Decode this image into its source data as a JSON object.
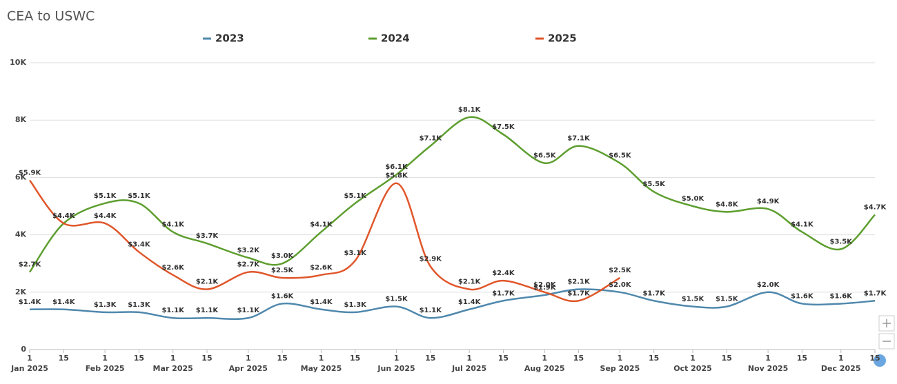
{
  "chart_data": {
    "type": "line",
    "title": "CEA to USWC",
    "x": [
      "2025-01-01",
      "2025-01-15",
      "2025-02-01",
      "2025-02-15",
      "2025-03-01",
      "2025-03-15",
      "2025-04-01",
      "2025-04-15",
      "2025-05-01",
      "2025-05-15",
      "2025-06-01",
      "2025-06-15",
      "2025-07-01",
      "2025-07-15",
      "2025-08-01",
      "2025-08-15",
      "2025-09-01",
      "2025-09-15",
      "2025-10-01",
      "2025-10-15",
      "2025-11-01",
      "2025-11-15",
      "2025-12-01",
      "2025-12-15"
    ],
    "xlim": [
      "2025-01-01",
      "2025-12-15"
    ],
    "xticks": [
      {
        "value": "2025-01-01",
        "label": "1"
      },
      {
        "value": "2025-01-15",
        "label": "15"
      },
      {
        "value": "2025-02-01",
        "label": "1"
      },
      {
        "value": "2025-02-15",
        "label": "15"
      },
      {
        "value": "2025-03-01",
        "label": "1"
      },
      {
        "value": "2025-03-15",
        "label": "15"
      },
      {
        "value": "2025-04-01",
        "label": "1"
      },
      {
        "value": "2025-04-15",
        "label": "15"
      },
      {
        "value": "2025-05-01",
        "label": "1"
      },
      {
        "value": "2025-05-15",
        "label": "15"
      },
      {
        "value": "2025-06-01",
        "label": "1"
      },
      {
        "value": "2025-06-15",
        "label": "15"
      },
      {
        "value": "2025-07-01",
        "label": "1"
      },
      {
        "value": "2025-07-15",
        "label": "15"
      },
      {
        "value": "2025-08-01",
        "label": "1"
      },
      {
        "value": "2025-08-15",
        "label": "15"
      },
      {
        "value": "2025-09-01",
        "label": "1"
      },
      {
        "value": "2025-09-15",
        "label": "15"
      },
      {
        "value": "2025-10-01",
        "label": "1"
      },
      {
        "value": "2025-10-15",
        "label": "15"
      },
      {
        "value": "2025-11-01",
        "label": "1"
      },
      {
        "value": "2025-11-15",
        "label": "15"
      },
      {
        "value": "2025-12-01",
        "label": "1"
      },
      {
        "value": "2025-12-15",
        "label": "15"
      }
    ],
    "xmonths": [
      {
        "value": "2025-01-01",
        "label": "Jan 2025"
      },
      {
        "value": "2025-02-01",
        "label": "Feb 2025"
      },
      {
        "value": "2025-03-01",
        "label": "Mar 2025"
      },
      {
        "value": "2025-04-01",
        "label": "Apr 2025"
      },
      {
        "value": "2025-05-01",
        "label": "May 2025"
      },
      {
        "value": "2025-06-01",
        "label": "Jun 2025"
      },
      {
        "value": "2025-07-01",
        "label": "Jul 2025"
      },
      {
        "value": "2025-08-01",
        "label": "Aug 2025"
      },
      {
        "value": "2025-09-01",
        "label": "Sep 2025"
      },
      {
        "value": "2025-10-01",
        "label": "Oct 2025"
      },
      {
        "value": "2025-11-01",
        "label": "Nov 2025"
      },
      {
        "value": "2025-12-01",
        "label": "Dec 2025"
      }
    ],
    "ylim": [
      0,
      10000
    ],
    "yticks": [
      0,
      {
        "value": 2000,
        "label": "2K"
      },
      {
        "value": 4000,
        "label": "4K"
      },
      {
        "value": 6000,
        "label": "6K"
      },
      {
        "value": 8000,
        "label": "8K"
      },
      {
        "value": 10000,
        "label": "10K"
      }
    ],
    "grid": true,
    "legend": "top",
    "series": [
      {
        "name": "2023",
        "color": "#4f88ad",
        "values": [
          1400,
          1400,
          1300,
          1300,
          1100,
          1100,
          1100,
          1600,
          1400,
          1300,
          1500,
          1100,
          1400,
          1700,
          1900,
          2100,
          2000,
          1700,
          1500,
          1500,
          2000,
          1600,
          1600,
          1700
        ],
        "value_labels": [
          "$1.4K",
          "$1.4K",
          "$1.3K",
          "$1.3K",
          "$1.1K",
          "$1.1K",
          "$1.1K",
          "$1.6K",
          "$1.4K",
          "$1.3K",
          "$1.5K",
          "$1.1K",
          "$1.4K",
          "$1.7K",
          "$1.9K",
          "$2.1K",
          "$2.0K",
          "$1.7K",
          "$1.5K",
          "$1.5K",
          "$2.0K",
          "$1.6K",
          "$1.6K",
          "$1.7K"
        ]
      },
      {
        "name": "2024",
        "color": "#5d9e2e",
        "values": [
          2700,
          4400,
          5100,
          5100,
          4100,
          3700,
          3200,
          3000,
          4100,
          5100,
          6100,
          7100,
          8100,
          7500,
          6500,
          7100,
          6500,
          5500,
          5000,
          4800,
          4900,
          4100,
          3500,
          4700
        ],
        "value_labels": [
          "$2.7K",
          "$4.4K",
          "$5.1K",
          "$5.1K",
          "$4.1K",
          "$3.7K",
          "$3.2K",
          "$3.0K",
          "$4.1K",
          "$5.1K",
          "$6.1K",
          "$7.1K",
          "$8.1K",
          "$7.5K",
          "$6.5K",
          "$7.1K",
          "$6.5K",
          "$5.5K",
          "$5.0K",
          "$4.8K",
          "$4.9K",
          "$4.1K",
          "$3.5K",
          "$4.7K"
        ]
      },
      {
        "name": "2025",
        "color": "#e0562a",
        "values": [
          5900,
          4400,
          4400,
          3400,
          2600,
          2100,
          2700,
          2500,
          2600,
          3100,
          5800,
          2900,
          2100,
          2400,
          2000,
          1700,
          2500,
          null,
          null,
          null,
          null,
          null,
          null,
          null
        ],
        "value_labels": [
          "$5.9K",
          "$4.4K",
          "$4.4K",
          "$3.4K",
          "$2.6K",
          "$2.1K",
          "$2.7K",
          "$2.5K",
          "$2.6K",
          "$3.1K",
          "$5.8K",
          "$2.9K",
          "$2.1K",
          "$2.4K",
          "$2.0K",
          "$1.7K",
          "$2.5K",
          null,
          null,
          null,
          null,
          null,
          null,
          null
        ]
      }
    ]
  }
}
